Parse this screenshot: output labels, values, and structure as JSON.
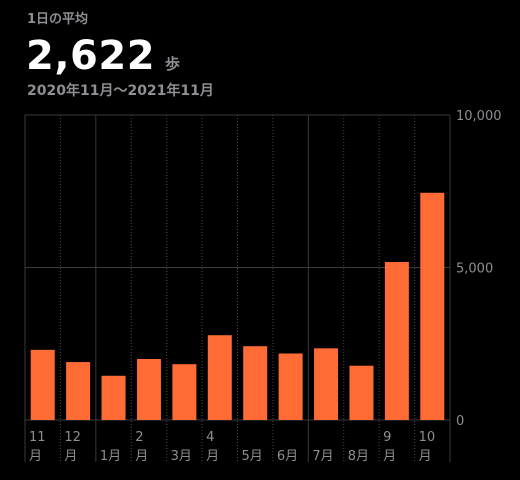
{
  "summary": {
    "label": "1日の平均",
    "value": "2,622",
    "unit": "歩",
    "date_range": "2020年11月〜2021年11月"
  },
  "colors": {
    "bar": "#ff6b35",
    "grid_solid": "#3a3a3c",
    "grid_dotted": "#48484a",
    "text_secondary": "#8e8e93",
    "background": "#000000"
  },
  "chart_data": {
    "type": "bar",
    "categories": [
      "11月",
      "12月",
      "1月",
      "2月",
      "3月",
      "4月",
      "5月",
      "6月",
      "7月",
      "8月",
      "9月",
      "10月"
    ],
    "x_tick_labels": [
      {
        "num": "11",
        "suffix": "月"
      },
      {
        "num": "12",
        "suffix": "月"
      },
      {
        "num": "",
        "suffix": "1月"
      },
      {
        "num": "2",
        "suffix": "月"
      },
      {
        "num": "",
        "suffix": "3月"
      },
      {
        "num": "4",
        "suffix": "月"
      },
      {
        "num": "",
        "suffix": "5月"
      },
      {
        "num": "",
        "suffix": "6月"
      },
      {
        "num": "",
        "suffix": "7月"
      },
      {
        "num": "",
        "suffix": "8月"
      },
      {
        "num": "9",
        "suffix": "月"
      },
      {
        "num": "10",
        "suffix": "月"
      }
    ],
    "values": [
      2300,
      1900,
      1450,
      2000,
      1830,
      2780,
      2420,
      2180,
      2350,
      1780,
      5180,
      7450
    ],
    "y_ticks": [
      0,
      5000,
      10000
    ],
    "y_tick_labels": [
      "0",
      "5,000",
      "10,000"
    ],
    "ylim": [
      0,
      10000
    ],
    "grid": true,
    "y_axis_position": "right"
  }
}
